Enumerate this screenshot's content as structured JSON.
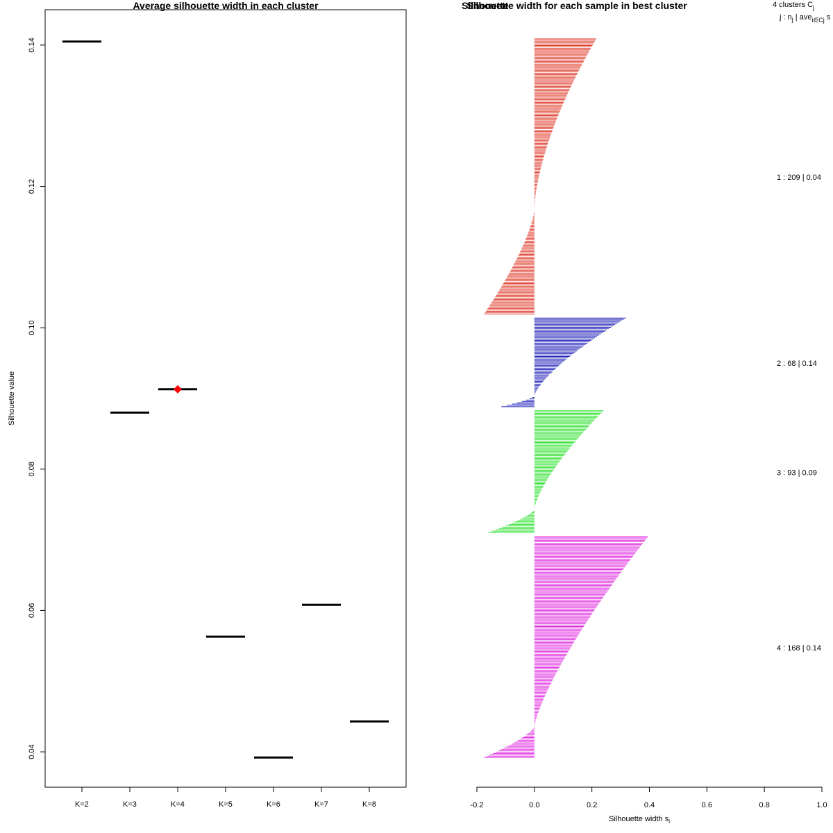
{
  "chart_data": [
    {
      "type": "scatter",
      "title": "Average silhouette width in each cluster",
      "xlabel": "",
      "ylabel": "Silhouette value",
      "categories": [
        "K=2",
        "K=3",
        "K=4",
        "K=5",
        "K=6",
        "K=7",
        "K=8"
      ],
      "values": [
        0.1405,
        0.088,
        0.0913,
        0.0563,
        0.0392,
        0.0608,
        0.0443
      ],
      "best_index": 2,
      "best_color": "#ff0000",
      "ylim": [
        0.035,
        0.145
      ],
      "yticks": [
        "0.04",
        "0.06",
        "0.08",
        "0.10",
        "0.12",
        "0.14"
      ],
      "ytick_values": [
        0.04,
        0.06,
        0.08,
        0.1,
        0.12,
        0.14
      ]
    },
    {
      "type": "bar",
      "title": "Silhouette width for each sample in best cluster",
      "title_overlap": "Silhouette",
      "xlabel": "Silhouette width s",
      "xlabel_sub": "i",
      "xlim": [
        -0.2,
        1.0
      ],
      "xticks": [
        "-0.2",
        "0.0",
        "0.2",
        "0.4",
        "0.6",
        "0.8",
        "1.0"
      ],
      "xtick_values": [
        -0.2,
        0.0,
        0.2,
        0.4,
        0.6,
        0.8,
        1.0
      ],
      "header_line1": "4  clusters  C",
      "header_line1_sub": "j",
      "header_line2": "j :  n",
      "header_line2_mid": "  |  ave",
      "header_line2_sub": "i∈Cj",
      "header_line2_end": "  s",
      "clusters": [
        {
          "id": 1,
          "n": 209,
          "label": "1 :  209  |  0.04",
          "color": "#df3b2b",
          "max": 0.215,
          "min": -0.175,
          "zero_frac": 0.62,
          "shape": 1.6
        },
        {
          "id": 2,
          "n": 68,
          "label": "2 :  68  |  0.14",
          "color": "#1f1fb8",
          "max": 0.318,
          "min": -0.115,
          "zero_frac": 0.88,
          "shape": 1.4
        },
        {
          "id": 3,
          "n": 93,
          "label": "3 :  93  |  0.09",
          "color": "#2fe02f",
          "max": 0.24,
          "min": -0.16,
          "zero_frac": 0.81,
          "shape": 1.4
        },
        {
          "id": 4,
          "n": 168,
          "label": "4 :  168  |  0.14",
          "color": "#e02fe0",
          "max": 0.395,
          "min": -0.175,
          "zero_frac": 0.86,
          "shape": 1.3
        }
      ]
    }
  ]
}
